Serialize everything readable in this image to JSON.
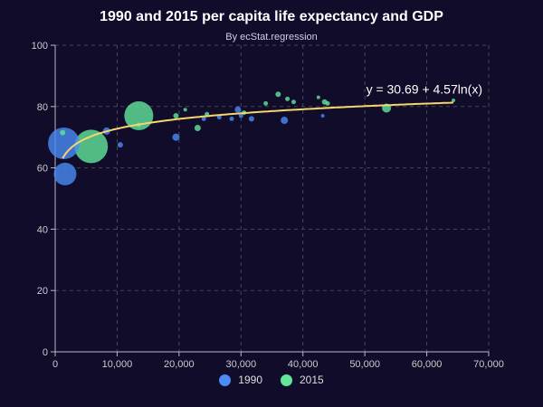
{
  "chart_data": {
    "type": "scatter",
    "title": "1990 and 2015 per capita life expectancy and GDP",
    "subtitle": "By ecStat.regression",
    "xlim": [
      0,
      70000
    ],
    "ylim": [
      0,
      100
    ],
    "x_ticks": [
      0,
      10000,
      20000,
      30000,
      40000,
      50000,
      60000,
      70000
    ],
    "x_tick_labels": [
      "0",
      "10,000",
      "20,000",
      "30,000",
      "40,000",
      "50,000",
      "60,000",
      "70,000"
    ],
    "y_ticks": [
      0,
      20,
      40,
      60,
      80,
      100
    ],
    "y_tick_labels": [
      "0",
      "20",
      "40",
      "60",
      "80",
      "100"
    ],
    "grid": true,
    "legend_position": "bottom-center",
    "series": [
      {
        "name": "1990",
        "color": "#4b8cf5",
        "points": [
          {
            "x": 1400,
            "y": 68,
            "size": 35
          },
          {
            "x": 1600,
            "y": 58,
            "size": 25
          },
          {
            "x": 8300,
            "y": 72,
            "size": 8
          },
          {
            "x": 10500,
            "y": 67.5,
            "size": 6
          },
          {
            "x": 19500,
            "y": 70,
            "size": 8
          },
          {
            "x": 24000,
            "y": 76,
            "size": 5
          },
          {
            "x": 26500,
            "y": 76.5,
            "size": 5
          },
          {
            "x": 28500,
            "y": 76,
            "size": 5
          },
          {
            "x": 29500,
            "y": 79,
            "size": 7
          },
          {
            "x": 30000,
            "y": 77,
            "size": 5
          },
          {
            "x": 31700,
            "y": 76,
            "size": 6
          },
          {
            "x": 37000,
            "y": 75.5,
            "size": 8
          },
          {
            "x": 43200,
            "y": 77,
            "size": 4
          }
        ]
      },
      {
        "name": "2015",
        "color": "#62e69c",
        "points": [
          {
            "x": 1200,
            "y": 71.5,
            "size": 6
          },
          {
            "x": 5800,
            "y": 67,
            "size": 37
          },
          {
            "x": 13500,
            "y": 77,
            "size": 32
          },
          {
            "x": 13500,
            "y": 74,
            "size": 5
          },
          {
            "x": 19500,
            "y": 77,
            "size": 6
          },
          {
            "x": 21000,
            "y": 79,
            "size": 4
          },
          {
            "x": 23000,
            "y": 73,
            "size": 7
          },
          {
            "x": 24500,
            "y": 77.5,
            "size": 5
          },
          {
            "x": 30500,
            "y": 78,
            "size": 5
          },
          {
            "x": 34000,
            "y": 81,
            "size": 5
          },
          {
            "x": 36000,
            "y": 84,
            "size": 6
          },
          {
            "x": 37500,
            "y": 82.5,
            "size": 5
          },
          {
            "x": 38500,
            "y": 81.5,
            "size": 5
          },
          {
            "x": 42500,
            "y": 83,
            "size": 4
          },
          {
            "x": 43500,
            "y": 81.5,
            "size": 6
          },
          {
            "x": 44000,
            "y": 81,
            "size": 5
          },
          {
            "x": 53500,
            "y": 79.5,
            "size": 10
          },
          {
            "x": 64300,
            "y": 82,
            "size": 4
          }
        ]
      }
    ],
    "regression": {
      "type": "logarithmic",
      "formula": "y = 30.69 + 4.57ln(x)",
      "a": 30.69,
      "b": 4.57,
      "x_range": [
        1200,
        64300
      ],
      "color": "#f7d66b"
    }
  },
  "legend": [
    {
      "label": "1990",
      "color": "#4b8cf5"
    },
    {
      "label": "2015",
      "color": "#62e69c"
    }
  ]
}
